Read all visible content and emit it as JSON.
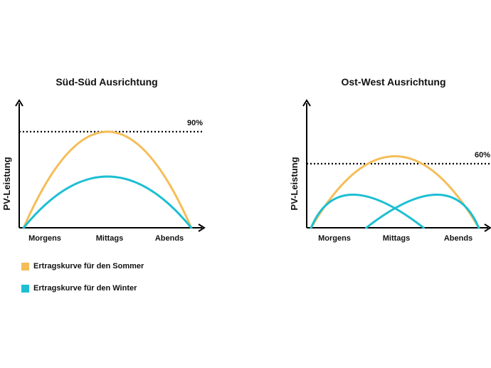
{
  "colors": {
    "summer": "#F5BD57",
    "winter": "#1DBFD3",
    "axis": "#000000"
  },
  "legend": [
    {
      "label": "Ertragskurve für den Sommer",
      "color": "#F5BD57"
    },
    {
      "label": "Ertragskurve für den Winter",
      "color": "#1DBFD3"
    }
  ],
  "chart_data": [
    {
      "type": "line",
      "title": "Süd-Süd Ausrichtung",
      "ylabel": "PV-Leistung",
      "xlabel": "",
      "x_ticks": [
        "Morgens",
        "Mittags",
        "Abends"
      ],
      "reference_line": {
        "label": "90%",
        "value": 90,
        "style": "dotted"
      },
      "ylim": [
        0,
        100
      ],
      "xlim": [
        0,
        4
      ],
      "series": [
        {
          "name": "Ertragskurve für den Sommer",
          "color": "#F5BD57",
          "x": [
            0.1,
            2.0,
            3.9
          ],
          "y": [
            0,
            90,
            0
          ]
        },
        {
          "name": "Ertragskurve für den Winter",
          "color": "#1DBFD3",
          "x": [
            0.1,
            2.0,
            3.9
          ],
          "y": [
            0,
            48,
            0
          ]
        }
      ]
    },
    {
      "type": "line",
      "title": "Ost-West Ausrichtung",
      "ylabel": "PV-Leistung",
      "xlabel": "",
      "x_ticks": [
        "Morgens",
        "Mittags",
        "Abends"
      ],
      "reference_line": {
        "label": "60%",
        "value": 60,
        "style": "dotted"
      },
      "ylim": [
        0,
        100
      ],
      "xlim": [
        0,
        4
      ],
      "series": [
        {
          "name": "Ertragskurve für den Sommer",
          "color": "#F5BD57",
          "x": [
            0.1,
            2.0,
            3.9
          ],
          "y": [
            0,
            67,
            0
          ]
        },
        {
          "name": "Ertragskurve für den Winter",
          "color": "#1DBFD3",
          "x": [
            0.1,
            1.05,
            2.65
          ],
          "y": [
            0,
            31,
            0
          ]
        },
        {
          "name": "Ertragskurve für den Winter",
          "color": "#1DBFD3",
          "x": [
            1.35,
            2.95,
            3.9
          ],
          "y": [
            0,
            31,
            0
          ]
        }
      ]
    }
  ]
}
